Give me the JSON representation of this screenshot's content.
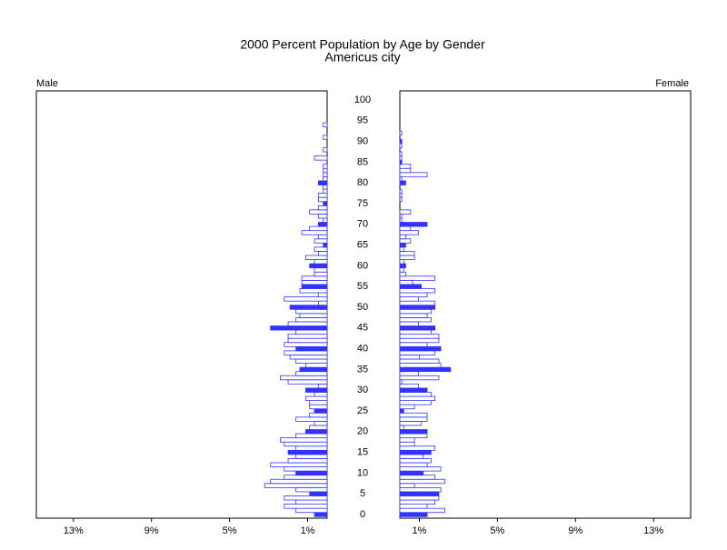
{
  "chart_data": {
    "type": "pyramid",
    "title": "2000 Percent Population by Age by Gender",
    "subtitle": "Americus city",
    "categories": [
      "0",
      null,
      null,
      null,
      null,
      "5",
      null,
      null,
      null,
      null,
      "10",
      null,
      null,
      null,
      null,
      "15",
      null,
      null,
      null,
      null,
      "20",
      null,
      null,
      null,
      null,
      "25",
      null,
      null,
      null,
      null,
      "30",
      null,
      null,
      null,
      null,
      "35",
      null,
      null,
      null,
      null,
      "40",
      null,
      null,
      null,
      null,
      "45",
      null,
      null,
      null,
      null,
      "50",
      null,
      null,
      null,
      null,
      "55",
      null,
      null,
      null,
      null,
      "60",
      null,
      null,
      null,
      null,
      "65",
      null,
      null,
      null,
      null,
      "70",
      null,
      null,
      null,
      null,
      "75",
      null,
      null,
      null,
      null,
      "80",
      null,
      null,
      null,
      null,
      "85",
      null,
      null,
      null,
      null,
      "90",
      null,
      null,
      null,
      null,
      "95",
      null,
      null,
      null,
      null,
      "100"
    ],
    "series": [
      {
        "name": "Male",
        "color": "#3333ff",
        "values": [
          0.65,
          1.6,
          2.2,
          1.6,
          2.2,
          0.9,
          1.6,
          3.2,
          2.9,
          2.2,
          1.6,
          2.2,
          2.9,
          2.0,
          1.6,
          2.0,
          1.6,
          2.2,
          2.4,
          1.6,
          1.1,
          0.9,
          0.65,
          1.6,
          0.9,
          0.65,
          0.9,
          0.9,
          1.1,
          0.65,
          1.1,
          0.45,
          2.0,
          2.4,
          1.6,
          1.4,
          1.1,
          1.6,
          1.9,
          2.2,
          1.6,
          2.2,
          2.0,
          2.0,
          1.6,
          2.9,
          2.0,
          1.6,
          1.4,
          1.6,
          1.9,
          0.45,
          2.2,
          0.45,
          1.4,
          1.3,
          1.3,
          1.3,
          0.65,
          0.65,
          0.9,
          0.65,
          1.1,
          0.45,
          0.65,
          0.2,
          0.65,
          0.45,
          1.3,
          0.9,
          0.45,
          0.2,
          0.45,
          0.9,
          0.45,
          0.2,
          0.45,
          0.45,
          0.2,
          0.2,
          0.45,
          0.2,
          0.2,
          0.2,
          0.2,
          0,
          0.65,
          0,
          0.2,
          0,
          0,
          0.2,
          0,
          0,
          0.2,
          0,
          0,
          0,
          0,
          0,
          0
        ]
      },
      {
        "name": "Female",
        "color": "#3333ff",
        "values": [
          1.4,
          2.3,
          1.4,
          1.8,
          2.0,
          2.0,
          2.1,
          0.75,
          2.3,
          1.8,
          1.2,
          2.1,
          1.4,
          1.6,
          1.2,
          1.6,
          1.8,
          0.75,
          0.75,
          1.4,
          1.4,
          0.2,
          1.1,
          1.4,
          1.4,
          0.2,
          0.75,
          1.6,
          1.8,
          1.6,
          1.4,
          0.95,
          0.1,
          2.0,
          0.95,
          2.6,
          2.1,
          2.0,
          1.0,
          1.8,
          2.1,
          1.4,
          2.0,
          2.0,
          1.6,
          1.8,
          0.95,
          1.6,
          1.4,
          1.6,
          1.8,
          1.8,
          0.95,
          1.4,
          1.8,
          1.1,
          0.65,
          1.8,
          0.3,
          0.2,
          0.3,
          0.2,
          0.75,
          0.75,
          0.2,
          0.3,
          0.55,
          0.3,
          0.95,
          0.55,
          1.4,
          0.1,
          0.1,
          0.55,
          0,
          0,
          0.1,
          0.1,
          0.1,
          0,
          0.3,
          0.1,
          1.4,
          0.55,
          0.55,
          0.1,
          0.1,
          0.1,
          0,
          0.1,
          0.1,
          0,
          0.1,
          0,
          0,
          0,
          0,
          0,
          0,
          0,
          0
        ]
      }
    ],
    "xlim": [
      0,
      14.9
    ],
    "xticks": [
      {
        "value": 1,
        "label": "1%"
      },
      {
        "value": 5,
        "label": "5%"
      },
      {
        "value": 9,
        "label": "9%"
      },
      {
        "value": 13,
        "label": "13%"
      }
    ]
  }
}
